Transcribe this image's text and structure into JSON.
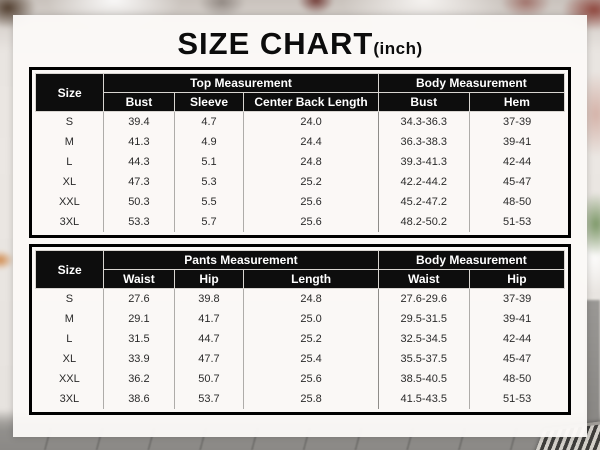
{
  "title": {
    "main": "SIZE CHART",
    "unit": "(inch)"
  },
  "colors": {
    "header_bg": "#0d0d0d",
    "header_text": "#ffffff",
    "table_border": "#000000",
    "body_text": "#2b2b2b",
    "divider": "#aeaca9",
    "panel_bg": "#faf8f6"
  },
  "chart_data": [
    {
      "type": "table",
      "size_header": "Size",
      "groups": [
        {
          "label": "Top Measurement",
          "columns": [
            "Bust",
            "Sleeve",
            "Center Back Length"
          ]
        },
        {
          "label": "Body Measurement",
          "columns": [
            "Bust",
            "Hem"
          ]
        }
      ],
      "rows": [
        [
          "S",
          "39.4",
          "4.7",
          "24.0",
          "34.3-36.3",
          "37-39"
        ],
        [
          "M",
          "41.3",
          "4.9",
          "24.4",
          "36.3-38.3",
          "39-41"
        ],
        [
          "L",
          "44.3",
          "5.1",
          "24.8",
          "39.3-41.3",
          "42-44"
        ],
        [
          "XL",
          "47.3",
          "5.3",
          "25.2",
          "42.2-44.2",
          "45-47"
        ],
        [
          "XXL",
          "50.3",
          "5.5",
          "25.6",
          "45.2-47.2",
          "48-50"
        ],
        [
          "3XL",
          "53.3",
          "5.7",
          "25.6",
          "48.2-50.2",
          "51-53"
        ]
      ]
    },
    {
      "type": "table",
      "size_header": "Size",
      "groups": [
        {
          "label": "Pants Measurement",
          "columns": [
            "Waist",
            "Hip",
            "Length"
          ]
        },
        {
          "label": "Body Measurement",
          "columns": [
            "Waist",
            "Hip"
          ]
        }
      ],
      "rows": [
        [
          "S",
          "27.6",
          "39.8",
          "24.8",
          "27.6-29.6",
          "37-39"
        ],
        [
          "M",
          "29.1",
          "41.7",
          "25.0",
          "29.5-31.5",
          "39-41"
        ],
        [
          "L",
          "31.5",
          "44.7",
          "25.2",
          "32.5-34.5",
          "42-44"
        ],
        [
          "XL",
          "33.9",
          "47.7",
          "25.4",
          "35.5-37.5",
          "45-47"
        ],
        [
          "XXL",
          "36.2",
          "50.7",
          "25.6",
          "38.5-40.5",
          "48-50"
        ],
        [
          "3XL",
          "38.6",
          "53.7",
          "25.8",
          "41.5-43.5",
          "51-53"
        ]
      ]
    }
  ]
}
